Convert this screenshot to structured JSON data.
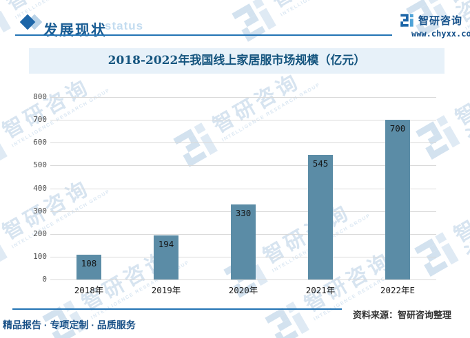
{
  "header": {
    "title": "发展现状",
    "title_watermark": "status",
    "brand": "智研咨询",
    "website": "www.chyxx.com"
  },
  "chart_data": {
    "type": "bar",
    "title": "2018-2022年我国线上家居服市场规模（亿元）",
    "categories": [
      "2018年",
      "2019年",
      "2020年",
      "2021年",
      "2022年E"
    ],
    "values": [
      108,
      194,
      330,
      545,
      700
    ],
    "ylim": [
      0,
      800
    ],
    "yticks": [
      0,
      100,
      200,
      300,
      400,
      500,
      600,
      700,
      800
    ],
    "grid": true,
    "legend": "none",
    "value_label_position": "inside-top",
    "bar_color": "#5b8ca6"
  },
  "watermark": {
    "text": "智研咨询",
    "subtext": "INTELLIGENCE RESEARCH GROUP"
  },
  "footer": {
    "left": "精品报告 · 专项定制 · 品质服务",
    "right": "资料来源：智研咨询整理"
  },
  "colors": {
    "accent_blue": "#2273b4",
    "title_blue": "#14547e",
    "header_blue": "#1a5d94",
    "banner_bg": "#e7f1f9",
    "bar": "#5b8ca6",
    "grid": "#d9d9d9"
  }
}
